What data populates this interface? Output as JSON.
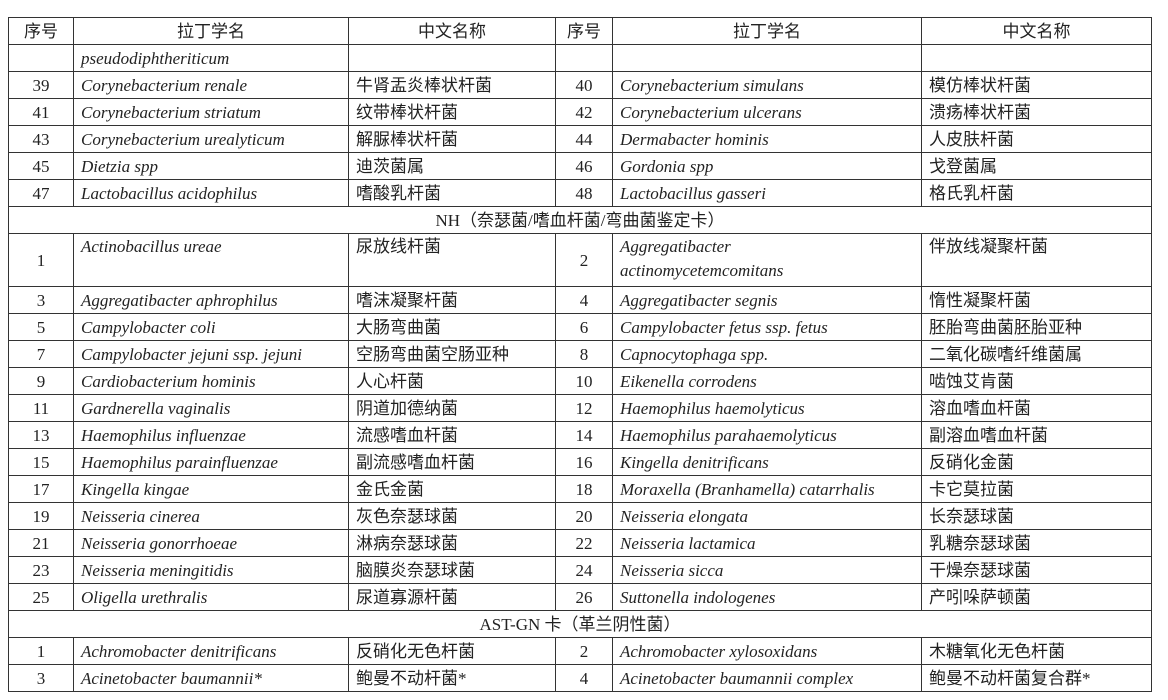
{
  "headers": [
    "序号",
    "拉丁学名",
    "中文名称",
    "序号",
    "拉丁学名",
    "中文名称"
  ],
  "continuation": {
    "left_latin": "pseudodiphtheriticum"
  },
  "block1": [
    {
      "n1": "39",
      "l1": "Corynebacterium renale",
      "c1": "牛肾盂炎棒状杆菌",
      "n2": "40",
      "l2": "Corynebacterium simulans",
      "c2": "模仿棒状杆菌"
    },
    {
      "n1": "41",
      "l1": "Corynebacterium striatum",
      "c1": "纹带棒状杆菌",
      "n2": "42",
      "l2": "Corynebacterium ulcerans",
      "c2": "溃疡棒状杆菌"
    },
    {
      "n1": "43",
      "l1": "Corynebacterium urealyticum",
      "c1": "解脲棒状杆菌",
      "n2": "44",
      "l2": "Dermabacter hominis",
      "c2": "人皮肤杆菌"
    },
    {
      "n1": "45",
      "l1": "Dietzia spp",
      "c1": "迪茨菌属",
      "n2": "46",
      "l2": "Gordonia spp",
      "c2": "戈登菌属"
    },
    {
      "n1": "47",
      "l1": "Lactobacillus acidophilus",
      "c1": "嗜酸乳杆菌",
      "n2": "48",
      "l2": "Lactobacillus gasseri",
      "c2": "格氏乳杆菌"
    }
  ],
  "section_nh": "NH（奈瑟菌/嗜血杆菌/弯曲菌鉴定卡）",
  "nh_first": {
    "n1": "1",
    "l1": "Actinobacillus ureae",
    "c1": "尿放线杆菌",
    "n2": "2",
    "l2a": "Aggregatibacter",
    "l2b": "actinomycetemcomitans",
    "c2": "伴放线凝聚杆菌"
  },
  "nh": [
    {
      "n1": "3",
      "l1": "Aggregatibacter aphrophilus",
      "c1": "嗜沫凝聚杆菌",
      "n2": "4",
      "l2": "Aggregatibacter segnis",
      "c2": "惰性凝聚杆菌"
    },
    {
      "n1": "5",
      "l1": "Campylobacter coli",
      "c1": "大肠弯曲菌",
      "n2": "6",
      "l2": "Campylobacter fetus ssp. fetus",
      "c2": "胚胎弯曲菌胚胎亚种"
    },
    {
      "n1": "7",
      "l1": "Campylobacter jejuni ssp. jejuni",
      "c1": "空肠弯曲菌空肠亚种",
      "n2": "8",
      "l2": "Capnocytophaga spp.",
      "c2": "二氧化碳嗜纤维菌属"
    },
    {
      "n1": "9",
      "l1": "Cardiobacterium hominis",
      "c1": "人心杆菌",
      "n2": "10",
      "l2": "Eikenella corrodens",
      "c2": "啮蚀艾肯菌"
    },
    {
      "n1": "11",
      "l1": "Gardnerella vaginalis",
      "c1": "阴道加德纳菌",
      "n2": "12",
      "l2": "Haemophilus haemolyticus",
      "c2": "溶血嗜血杆菌"
    },
    {
      "n1": "13",
      "l1": "Haemophilus influenzae",
      "c1": "流感嗜血杆菌",
      "n2": "14",
      "l2": "Haemophilus parahaemolyticus",
      "c2": "副溶血嗜血杆菌"
    },
    {
      "n1": "15",
      "l1": "Haemophilus parainfluenzae",
      "c1": "副流感嗜血杆菌",
      "n2": "16",
      "l2": "Kingella denitrificans",
      "c2": "反硝化金菌"
    },
    {
      "n1": "17",
      "l1": "Kingella kingae",
      "c1": "金氏金菌",
      "n2": "18",
      "l2": "Moraxella (Branhamella) catarrhalis",
      "c2": "卡它莫拉菌"
    },
    {
      "n1": "19",
      "l1": "Neisseria cinerea",
      "c1": "灰色奈瑟球菌",
      "n2": "20",
      "l2": "Neisseria elongata",
      "c2": "长奈瑟球菌"
    },
    {
      "n1": "21",
      "l1": "Neisseria gonorrhoeae",
      "c1": "淋病奈瑟球菌",
      "n2": "22",
      "l2": "Neisseria lactamica",
      "c2": "乳糖奈瑟球菌"
    },
    {
      "n1": "23",
      "l1": "Neisseria meningitidis",
      "c1": "脑膜炎奈瑟球菌",
      "n2": "24",
      "l2": "Neisseria sicca",
      "c2": "干燥奈瑟球菌"
    },
    {
      "n1": "25",
      "l1": "Oligella urethralis",
      "c1": "尿道寡源杆菌",
      "n2": "26",
      "l2": "Suttonella indologenes",
      "c2": "产吲哚萨顿菌"
    }
  ],
  "section_ast": "AST-GN 卡（革兰阴性菌）",
  "ast": [
    {
      "n1": "1",
      "l1": "Achromobacter denitrificans",
      "c1": "反硝化无色杆菌",
      "n2": "2",
      "l2": "Achromobacter xylosoxidans",
      "c2": "木糖氧化无色杆菌"
    },
    {
      "n1": "3",
      "l1": "Acinetobacter baumannii*",
      "c1": "鲍曼不动杆菌*",
      "n2": "4",
      "l2": "Acinetobacter baumannii complex",
      "c2": "鲍曼不动杆菌复合群*"
    }
  ]
}
